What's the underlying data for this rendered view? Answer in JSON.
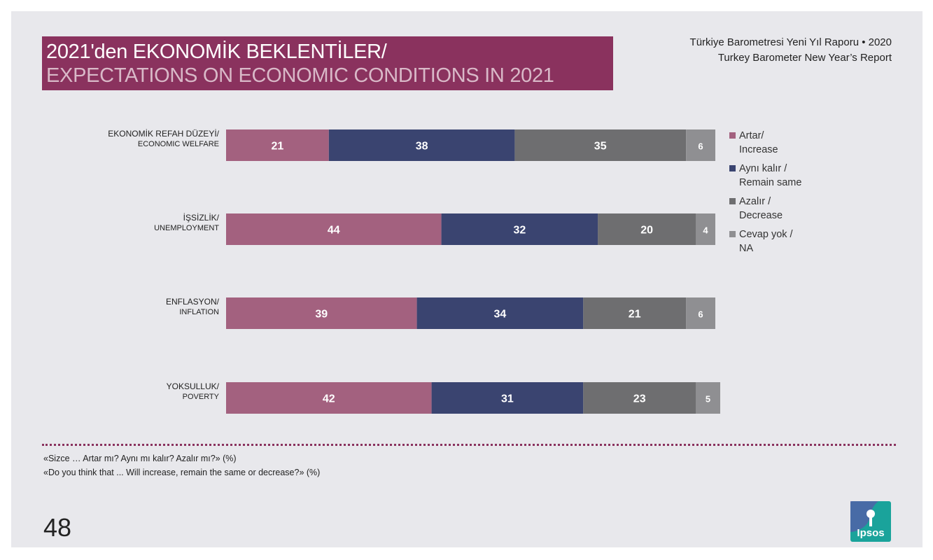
{
  "header": {
    "title_line1": "2021'den EKONOMİK BEKLENTİLER/",
    "title_line2": "EXPECTATIONS ON ECONOMIC CONDITIONS IN 2021",
    "report_tr": "Türkiye Barometresi Yeni Yıl Raporu • 2020",
    "report_en": "Turkey Barometer New Year’s Report"
  },
  "colors": {
    "increase": "#a3617f",
    "same": "#3a4470",
    "decrease": "#6e6e70",
    "na": "#8f8f92",
    "title_bg": "#8a325e",
    "divider": "#8a325e",
    "logo": "#1aa39b"
  },
  "chart_data": {
    "type": "bar",
    "orientation": "horizontal",
    "stacked": true,
    "unit": "%",
    "categories": [
      {
        "tr": "EKONOMİK REFAH DÜZEYİ/",
        "en": "ECONOMIC WELFARE"
      },
      {
        "tr": "İŞSİZLİK/",
        "en": "UNEMPLOYMENT"
      },
      {
        "tr": "ENFLASYON/",
        "en": "INFLATION"
      },
      {
        "tr": "YOKSULLUK/",
        "en": "POVERTY"
      }
    ],
    "series": [
      {
        "key": "increase",
        "name_tr": "Artar/",
        "name_en": "Increase",
        "values": [
          21,
          44,
          39,
          42
        ]
      },
      {
        "key": "same",
        "name_tr": "Aynı kalır /",
        "name_en": "Remain same",
        "values": [
          38,
          32,
          34,
          31
        ]
      },
      {
        "key": "decrease",
        "name_tr": "Azalır /",
        "name_en": "Decrease",
        "values": [
          35,
          20,
          21,
          23
        ]
      },
      {
        "key": "na",
        "name_tr": "Cevap yok /",
        "name_en": "NA",
        "values": [
          6,
          4,
          6,
          5
        ]
      }
    ],
    "xlim": [
      0,
      100
    ],
    "legend": "right"
  },
  "footnotes": {
    "tr": "«Sizce … Artar mı? Aynı mı kalır? Azalır mı?» (%)",
    "en": "«Do you think that ... Will increase, remain the same or decrease?» (%)"
  },
  "page_number": "48",
  "logo_text": "Ipsos"
}
